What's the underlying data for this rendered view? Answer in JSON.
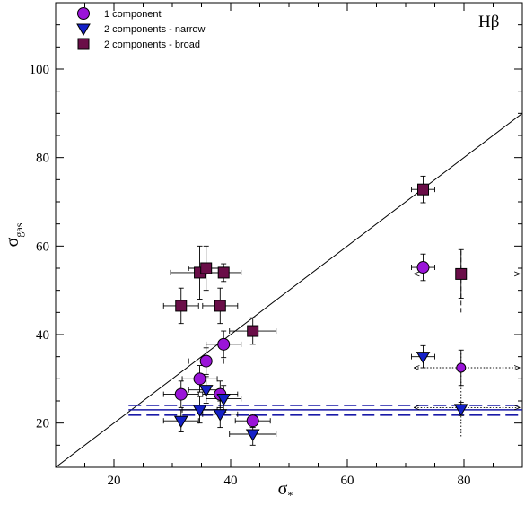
{
  "chart_data": {
    "type": "scatter",
    "panel_label": "Hβ",
    "xlabel": {
      "symbol": "σ",
      "sub": "*"
    },
    "ylabel": {
      "symbol": "σ",
      "sub": "gas"
    },
    "xlim": [
      10,
      90
    ],
    "ylim": [
      10,
      115
    ],
    "xticks": [
      20,
      40,
      60,
      80
    ],
    "yticks": [
      20,
      40,
      60,
      80,
      100
    ],
    "x_minor_step": 5,
    "y_minor_step": 5,
    "grid": false,
    "legend_position": "top-left",
    "legend": [
      {
        "label": "1 component",
        "marker": "circle",
        "color": "#9a14d8"
      },
      {
        "label": "2 components - narrow",
        "marker": "triangle-down",
        "color": "#1420c8"
      },
      {
        "label": "2 components - broad",
        "marker": "square",
        "color": "#6a0e48"
      }
    ],
    "one_to_one_line": {
      "x": [
        10,
        90
      ],
      "y": [
        10,
        90
      ]
    },
    "hlines": [
      {
        "y": 23.0,
        "style": "solid",
        "color": "#1a1aa8",
        "x_from": 22.5,
        "x_to": 90
      },
      {
        "y": 24.0,
        "style": "dashed",
        "color": "#1a1aa8",
        "x_from": 22.5,
        "x_to": 90
      },
      {
        "y": 21.8,
        "style": "dashed",
        "color": "#1a1aa8",
        "x_from": 22.5,
        "x_to": 90
      }
    ],
    "series": [
      {
        "name": "1 component",
        "marker": "circle",
        "color": "#9a14d8",
        "points": [
          {
            "x": 31.5,
            "y": 26.5,
            "xerr": 3.0,
            "yerr": 3.0
          },
          {
            "x": 34.7,
            "y": 30.0,
            "xerr": 3.0,
            "yerr": 3.0
          },
          {
            "x": 35.8,
            "y": 34.0,
            "xerr": 3.0,
            "yerr": 3.0
          },
          {
            "x": 38.2,
            "y": 26.5,
            "xerr": 3.0,
            "yerr": 3.0
          },
          {
            "x": 38.8,
            "y": 37.8,
            "xerr": 3.0,
            "yerr": 3.0
          },
          {
            "x": 43.8,
            "y": 20.5,
            "xerr": 3.0,
            "yerr": 1.5
          },
          {
            "x": 73.0,
            "y": 55.2,
            "xerr": 2.0,
            "yerr": 3.0
          },
          {
            "x": 79.5,
            "y": 32.5,
            "xerr": 0,
            "yerr": 4.0,
            "small": true
          }
        ]
      },
      {
        "name": "2 components - narrow",
        "marker": "triangle-down",
        "color": "#1420c8",
        "points": [
          {
            "x": 31.5,
            "y": 20.5,
            "xerr": 3.0,
            "yerr": 2.5
          },
          {
            "x": 34.7,
            "y": 23.0,
            "xerr": 3.0,
            "yerr": 3.0
          },
          {
            "x": 35.8,
            "y": 27.5,
            "xerr": 3.0,
            "yerr": 3.0
          },
          {
            "x": 38.2,
            "y": 22.0,
            "xerr": 3.0,
            "yerr": 3.0
          },
          {
            "x": 38.8,
            "y": 25.5,
            "xerr": 3.0,
            "yerr": 3.0
          },
          {
            "x": 43.8,
            "y": 17.5,
            "xerr": 4.0,
            "yerr": 2.5
          },
          {
            "x": 73.0,
            "y": 35.0,
            "xerr": 2.0,
            "yerr": 2.5
          },
          {
            "x": 79.5,
            "y": 23.2,
            "xerr": 0,
            "yerr": 1.5
          }
        ]
      },
      {
        "name": "2 components - broad",
        "marker": "square",
        "color": "#6a0e48",
        "points": [
          {
            "x": 31.5,
            "y": 46.5,
            "xerr": 3.0,
            "yerr": 4.0
          },
          {
            "x": 34.7,
            "y": 54.0,
            "xerr": 5.0,
            "yerr": 6.0
          },
          {
            "x": 35.8,
            "y": 55.0,
            "xerr": 3.0,
            "yerr": 5.0
          },
          {
            "x": 38.2,
            "y": 46.5,
            "xerr": 3.0,
            "yerr": 4.0
          },
          {
            "x": 38.8,
            "y": 54.0,
            "xerr": 3.0,
            "yerr": 2.0
          },
          {
            "x": 43.8,
            "y": 40.8,
            "xerr": 4.0,
            "yerr": 3.0
          },
          {
            "x": 73.0,
            "y": 72.8,
            "xerr": 2.0,
            "yerr": 3.0
          },
          {
            "x": 79.5,
            "y": 53.7,
            "xerr": 0,
            "yerr": 5.5
          }
        ]
      }
    ],
    "range_arrows": [
      {
        "y": 53.7,
        "x_from": 71.5,
        "x_to": 89.5,
        "x_center": 79.5,
        "y_from": 45.0,
        "y_to": 59.0,
        "style": "dashed"
      },
      {
        "y": 32.5,
        "x_from": 71.5,
        "x_to": 89.5,
        "x_center": 79.5,
        "y_from": 17.0,
        "y_to": 36.0,
        "style": "dotted"
      },
      {
        "y": 23.5,
        "x_from": 71.5,
        "x_to": 89.5,
        "x_center": null,
        "y_from": null,
        "y_to": null,
        "style": "dotted"
      }
    ]
  }
}
